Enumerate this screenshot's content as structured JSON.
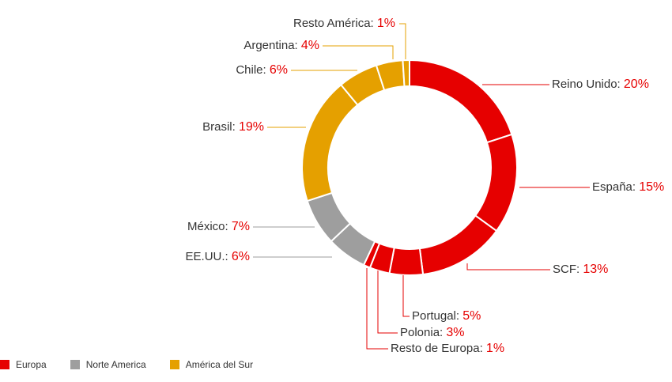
{
  "chart_data": {
    "type": "pie",
    "donut": true,
    "title": "",
    "groups": [
      {
        "name": "Europa",
        "color": "#e60000"
      },
      {
        "name": "Norte America",
        "color": "#9e9e9e"
      },
      {
        "name": "América del Sur",
        "color": "#e5a000"
      }
    ],
    "slices": [
      {
        "name": "Reino Unido",
        "value": 20,
        "pct_label": "20%",
        "group": "Europa"
      },
      {
        "name": "España",
        "value": 15,
        "pct_label": "15%",
        "group": "Europa"
      },
      {
        "name": "SCF",
        "value": 13,
        "pct_label": "13%",
        "group": "Europa"
      },
      {
        "name": "Portugal",
        "value": 5,
        "pct_label": "5%",
        "group": "Europa"
      },
      {
        "name": "Polonia",
        "value": 3,
        "pct_label": "3%",
        "group": "Europa"
      },
      {
        "name": "Resto de Europa",
        "value": 1,
        "pct_label": "1%",
        "group": "Europa"
      },
      {
        "name": "EE.UU.",
        "value": 6,
        "pct_label": "6%",
        "group": "Norte America"
      },
      {
        "name": "México",
        "value": 7,
        "pct_label": "7%",
        "group": "Norte America"
      },
      {
        "name": "Brasil",
        "value": 19,
        "pct_label": "19%",
        "group": "América del Sur"
      },
      {
        "name": "Chile",
        "value": 6,
        "pct_label": "6%",
        "group": "América del Sur"
      },
      {
        "name": "Argentina",
        "value": 4,
        "pct_label": "4%",
        "group": "América del Sur"
      },
      {
        "name": "Resto América",
        "value": 1,
        "pct_label": "1%",
        "group": "América del Sur"
      }
    ],
    "label_colors": {
      "name": "#333333",
      "value": "#e60000"
    },
    "legend_position": "bottom-left"
  }
}
